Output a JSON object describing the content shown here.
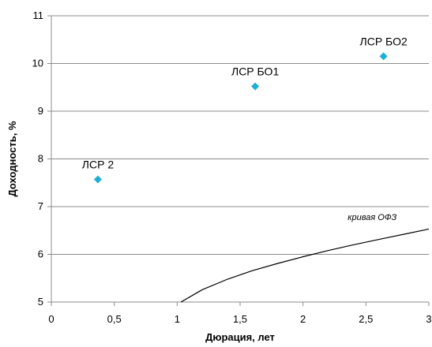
{
  "chart_data": {
    "type": "scatter",
    "xlabel": "Дюрация, лет",
    "ylabel": "Доходность, %",
    "xlim": [
      0,
      3
    ],
    "ylim": [
      5,
      11
    ],
    "xticks": [
      "0",
      "0,5",
      "1",
      "1,5",
      "2",
      "2,5",
      "3"
    ],
    "yticks": [
      "5",
      "6",
      "7",
      "8",
      "9",
      "10",
      "11"
    ],
    "grid": "horizontal",
    "points": [
      {
        "label": "ЛСР 2",
        "x": 0.37,
        "y": 7.57
      },
      {
        "label": "ЛСР БО1",
        "x": 1.62,
        "y": 9.52
      },
      {
        "label": "ЛСР БО2",
        "x": 2.64,
        "y": 10.15
      }
    ],
    "point_color": "#1CB0D6",
    "curve": {
      "label": "кривая ОФЗ",
      "color": "#000000",
      "x": [
        1.03,
        1.2,
        1.4,
        1.6,
        1.8,
        2.0,
        2.2,
        2.4,
        2.6,
        2.8,
        3.0
      ],
      "y": [
        5.0,
        5.26,
        5.48,
        5.66,
        5.81,
        5.95,
        6.08,
        6.2,
        6.31,
        6.42,
        6.53
      ]
    }
  }
}
